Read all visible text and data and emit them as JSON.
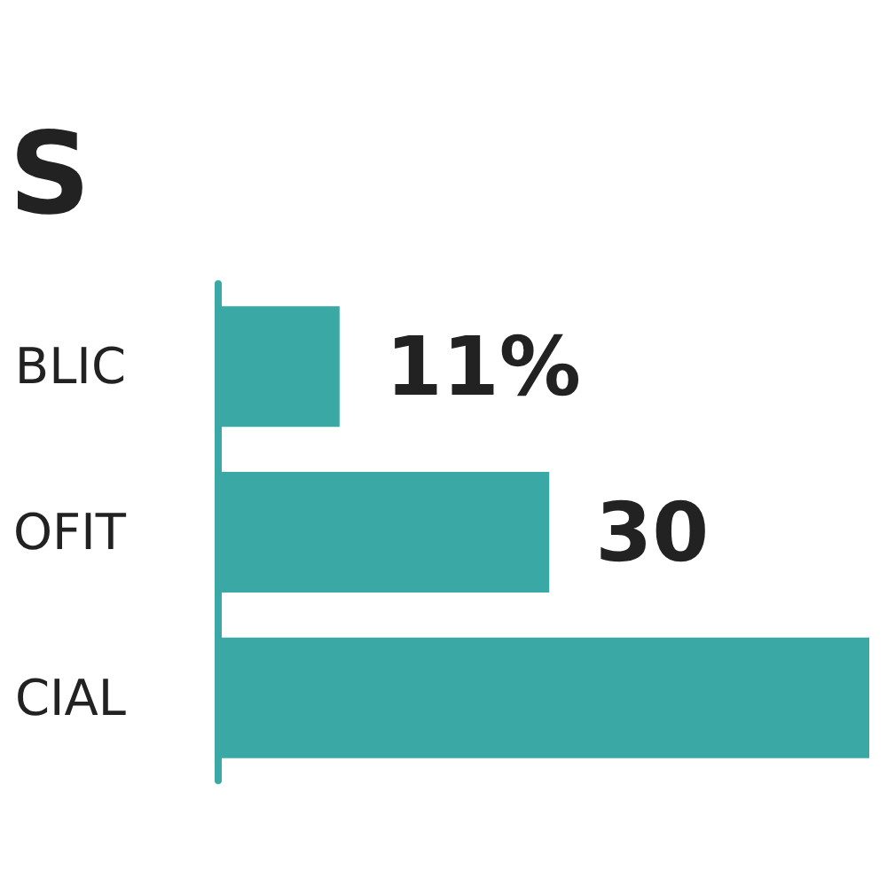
{
  "chart_data": {
    "type": "bar",
    "orientation": "horizontal",
    "title": "S",
    "categories": [
      "BLIC",
      "OFIT",
      "CIAL"
    ],
    "values": [
      11,
      30,
      59
    ],
    "value_labels": [
      "11%",
      "30",
      null
    ],
    "color": "#3aa8a4"
  }
}
